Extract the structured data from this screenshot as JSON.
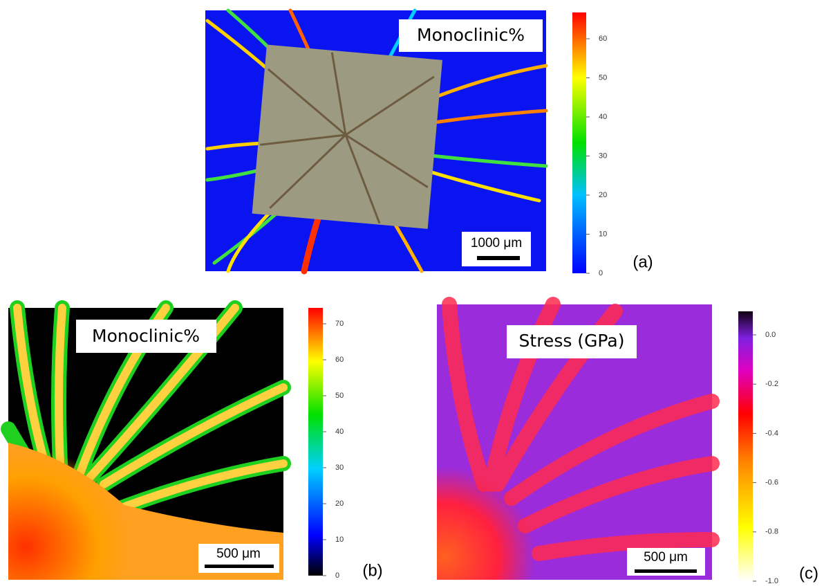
{
  "panels": [
    {
      "label": "(a)",
      "title": "Monoclinic%",
      "scale_bar": "1000 μm",
      "colorbar": {
        "ticks": [
          "0",
          "10",
          "20",
          "30",
          "40",
          "50",
          "60"
        ]
      }
    },
    {
      "label": "(b)",
      "title": "Monoclinic%",
      "scale_bar": "500 μm",
      "colorbar": {
        "ticks": [
          "0",
          "10",
          "20",
          "30",
          "40",
          "50",
          "60",
          "70"
        ]
      }
    },
    {
      "label": "(c)",
      "title": "Stress (GPa)",
      "scale_bar": "500 μm",
      "colorbar": {
        "ticks": [
          "-1.0",
          "-0.8",
          "-0.6",
          "-0.4",
          "-0.2",
          "0.0"
        ]
      }
    }
  ]
}
